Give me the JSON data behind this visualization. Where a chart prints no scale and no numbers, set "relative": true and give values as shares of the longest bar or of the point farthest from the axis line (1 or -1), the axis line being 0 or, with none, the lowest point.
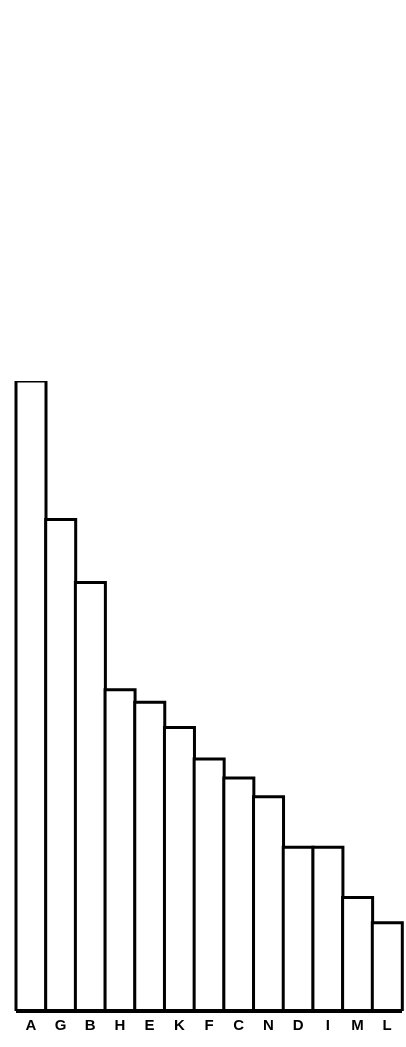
{
  "chart_data": {
    "type": "bar",
    "relative": true,
    "categories": [
      "A",
      "G",
      "B",
      "H",
      "E",
      "K",
      "F",
      "C",
      "N",
      "D",
      "I",
      "M",
      "L"
    ],
    "values": [
      1,
      0.78,
      0.68,
      0.51,
      0.49,
      0.45,
      0.4,
      0.37,
      0.34,
      0.26,
      0.26,
      0.18,
      0.14
    ],
    "color": "#ffffff",
    "grid": false,
    "legend": false
  }
}
